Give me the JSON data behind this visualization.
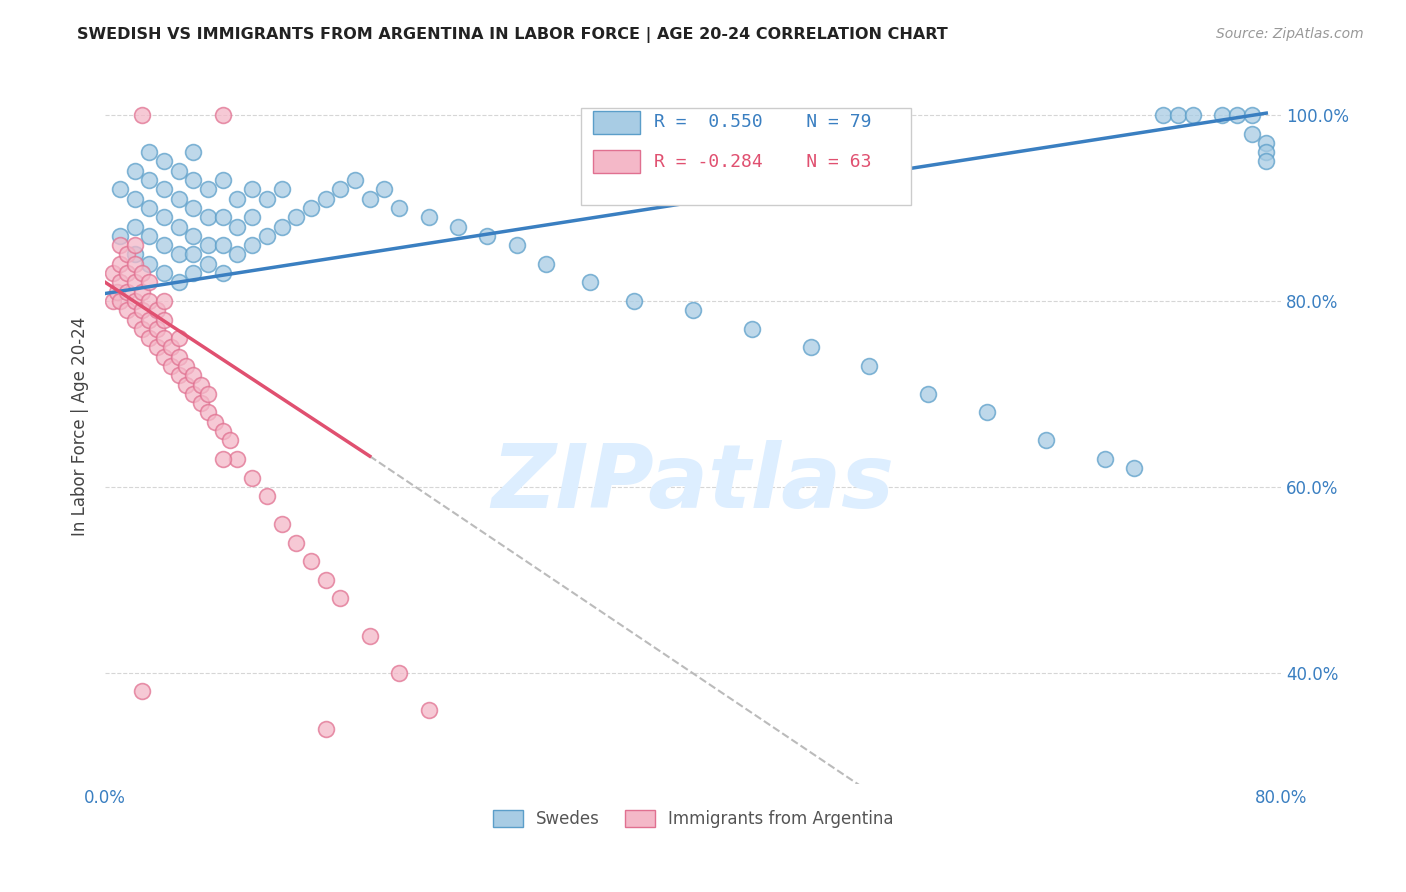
{
  "title": "SWEDISH VS IMMIGRANTS FROM ARGENTINA IN LABOR FORCE | AGE 20-24 CORRELATION CHART",
  "source": "Source: ZipAtlas.com",
  "ylabel": "In Labor Force | Age 20-24",
  "xlim": [
    0.0,
    0.8
  ],
  "ylim": [
    0.28,
    1.05
  ],
  "blue_R": 0.55,
  "blue_N": 79,
  "pink_R": -0.284,
  "pink_N": 63,
  "blue_color": "#a8cce4",
  "pink_color": "#f4b8c8",
  "blue_edge_color": "#5b9ec9",
  "pink_edge_color": "#e07090",
  "blue_line_color": "#3a7fc1",
  "pink_line_color": "#e05070",
  "watermark_color": "#ddeeff",
  "grid_color": "#cccccc",
  "tick_color": "#3a7fc1",
  "title_color": "#222222",
  "source_color": "#999999",
  "legend_labels": [
    "Swedes",
    "Immigrants from Argentina"
  ],
  "blue_x": [
    0.01,
    0.01,
    0.02,
    0.02,
    0.02,
    0.02,
    0.03,
    0.03,
    0.03,
    0.03,
    0.03,
    0.04,
    0.04,
    0.04,
    0.04,
    0.04,
    0.05,
    0.05,
    0.05,
    0.05,
    0.05,
    0.06,
    0.06,
    0.06,
    0.06,
    0.06,
    0.06,
    0.07,
    0.07,
    0.07,
    0.07,
    0.08,
    0.08,
    0.08,
    0.08,
    0.09,
    0.09,
    0.09,
    0.1,
    0.1,
    0.1,
    0.11,
    0.11,
    0.12,
    0.12,
    0.13,
    0.14,
    0.15,
    0.16,
    0.17,
    0.18,
    0.19,
    0.2,
    0.22,
    0.24,
    0.26,
    0.28,
    0.3,
    0.33,
    0.36,
    0.4,
    0.44,
    0.48,
    0.52,
    0.56,
    0.6,
    0.64,
    0.68,
    0.7,
    0.72,
    0.73,
    0.74,
    0.76,
    0.77,
    0.78,
    0.78,
    0.79,
    0.79,
    0.79
  ],
  "blue_y": [
    0.87,
    0.92,
    0.85,
    0.88,
    0.91,
    0.94,
    0.84,
    0.87,
    0.9,
    0.93,
    0.96,
    0.83,
    0.86,
    0.89,
    0.92,
    0.95,
    0.82,
    0.85,
    0.88,
    0.91,
    0.94,
    0.83,
    0.85,
    0.87,
    0.9,
    0.93,
    0.96,
    0.84,
    0.86,
    0.89,
    0.92,
    0.83,
    0.86,
    0.89,
    0.93,
    0.85,
    0.88,
    0.91,
    0.86,
    0.89,
    0.92,
    0.87,
    0.91,
    0.88,
    0.92,
    0.89,
    0.9,
    0.91,
    0.92,
    0.93,
    0.91,
    0.92,
    0.9,
    0.89,
    0.88,
    0.87,
    0.86,
    0.84,
    0.82,
    0.8,
    0.79,
    0.77,
    0.75,
    0.73,
    0.7,
    0.68,
    0.65,
    0.63,
    0.62,
    1.0,
    1.0,
    1.0,
    1.0,
    1.0,
    1.0,
    0.98,
    0.97,
    0.96,
    0.95
  ],
  "pink_x": [
    0.005,
    0.005,
    0.008,
    0.01,
    0.01,
    0.01,
    0.01,
    0.015,
    0.015,
    0.015,
    0.015,
    0.02,
    0.02,
    0.02,
    0.02,
    0.02,
    0.025,
    0.025,
    0.025,
    0.025,
    0.03,
    0.03,
    0.03,
    0.03,
    0.035,
    0.035,
    0.035,
    0.04,
    0.04,
    0.04,
    0.04,
    0.045,
    0.045,
    0.05,
    0.05,
    0.05,
    0.055,
    0.055,
    0.06,
    0.06,
    0.065,
    0.065,
    0.07,
    0.07,
    0.075,
    0.08,
    0.085,
    0.09,
    0.1,
    0.11,
    0.12,
    0.13,
    0.14,
    0.15,
    0.16,
    0.18,
    0.2,
    0.22,
    0.025,
    0.08,
    0.15,
    0.025,
    0.08
  ],
  "pink_y": [
    0.8,
    0.83,
    0.81,
    0.8,
    0.82,
    0.84,
    0.86,
    0.79,
    0.81,
    0.83,
    0.85,
    0.78,
    0.8,
    0.82,
    0.84,
    0.86,
    0.77,
    0.79,
    0.81,
    0.83,
    0.76,
    0.78,
    0.8,
    0.82,
    0.75,
    0.77,
    0.79,
    0.74,
    0.76,
    0.78,
    0.8,
    0.73,
    0.75,
    0.72,
    0.74,
    0.76,
    0.71,
    0.73,
    0.7,
    0.72,
    0.69,
    0.71,
    0.68,
    0.7,
    0.67,
    0.66,
    0.65,
    0.63,
    0.61,
    0.59,
    0.56,
    0.54,
    0.52,
    0.5,
    0.48,
    0.44,
    0.4,
    0.36,
    0.38,
    0.63,
    0.34,
    1.0,
    1.0
  ]
}
